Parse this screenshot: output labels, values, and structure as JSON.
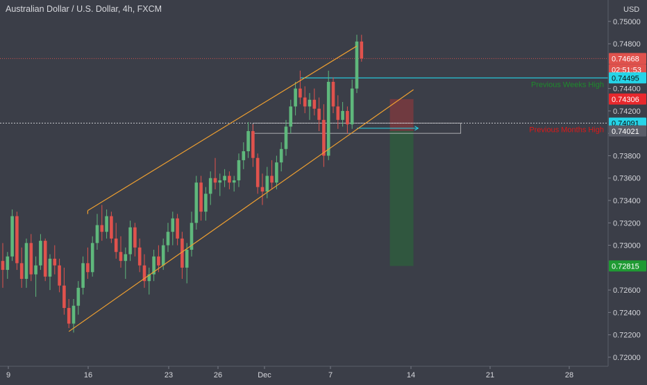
{
  "header": {
    "title": "Australian Dollar / U.S. Dollar, 4h, FXCM"
  },
  "colors": {
    "background": "#3b3e48",
    "axis_text": "#d6d7dc",
    "bull": "#5fb87c",
    "bear": "#e0524d",
    "channel": "#f0a030",
    "weeks_high": "#25d4e8",
    "months_high": "#e8e8ec",
    "label_green": "#1e8a2c",
    "label_red": "#e01818",
    "target_zone": "#2f5c3e",
    "stop_zone": "#7a3a3f"
  },
  "chart_data": {
    "type": "candlestick",
    "currency_label": "USD",
    "ylim": [
      0.7195,
      0.7516
    ],
    "y_ticks": [
      "0.75000",
      "0.74800",
      "0.74400",
      "0.74200",
      "0.74000",
      "0.73800",
      "0.73600",
      "0.73400",
      "0.73200",
      "0.73000",
      "0.72600",
      "0.72400",
      "0.72200",
      "0.72000"
    ],
    "x_ticks": [
      {
        "label": "9",
        "x": 8
      },
      {
        "label": "16",
        "x": 23
      },
      {
        "label": "23",
        "x": 38
      },
      {
        "label": "26",
        "x": 46
      },
      {
        "label": "Dec",
        "x": 53
      },
      {
        "label": "7",
        "x": 68
      },
      {
        "label": "14",
        "x": 83
      },
      {
        "label": "21",
        "x": 98
      },
      {
        "label": "28",
        "x": 113
      }
    ],
    "candles": [
      [
        0,
        0.7286,
        0.7302,
        0.7262,
        0.7278
      ],
      [
        1,
        0.7278,
        0.7294,
        0.727,
        0.729
      ],
      [
        2,
        0.729,
        0.7332,
        0.7286,
        0.7326
      ],
      [
        3,
        0.7326,
        0.733,
        0.7278,
        0.7284
      ],
      [
        4,
        0.7284,
        0.7298,
        0.7262,
        0.727
      ],
      [
        5,
        0.727,
        0.7306,
        0.7262,
        0.7302
      ],
      [
        6,
        0.7302,
        0.731,
        0.7268,
        0.7274
      ],
      [
        7,
        0.7274,
        0.729,
        0.7254,
        0.7282
      ],
      [
        8,
        0.7282,
        0.731,
        0.7278,
        0.7304
      ],
      [
        9,
        0.7304,
        0.7306,
        0.7268,
        0.7272
      ],
      [
        10,
        0.7272,
        0.7292,
        0.726,
        0.7288
      ],
      [
        11,
        0.7288,
        0.73,
        0.7274,
        0.7282
      ],
      [
        12,
        0.7282,
        0.7288,
        0.7258,
        0.7264
      ],
      [
        13,
        0.7264,
        0.728,
        0.7238,
        0.7244
      ],
      [
        14,
        0.7244,
        0.7252,
        0.7226,
        0.723
      ],
      [
        15,
        0.723,
        0.7252,
        0.7222,
        0.7246
      ],
      [
        16,
        0.7246,
        0.7268,
        0.7238,
        0.7262
      ],
      [
        17,
        0.7262,
        0.729,
        0.7256,
        0.7284
      ],
      [
        18,
        0.7284,
        0.7298,
        0.727,
        0.7276
      ],
      [
        19,
        0.7276,
        0.7308,
        0.7272,
        0.7302
      ],
      [
        20,
        0.7302,
        0.7328,
        0.7296,
        0.7318
      ],
      [
        21,
        0.7318,
        0.7336,
        0.7304,
        0.7312
      ],
      [
        22,
        0.7312,
        0.7332,
        0.7306,
        0.7326
      ],
      [
        23,
        0.7326,
        0.733,
        0.7302,
        0.7306
      ],
      [
        24,
        0.7306,
        0.732,
        0.7288,
        0.7294
      ],
      [
        25,
        0.7294,
        0.7308,
        0.728,
        0.7286
      ],
      [
        26,
        0.7286,
        0.7298,
        0.727,
        0.7292
      ],
      [
        27,
        0.7292,
        0.7322,
        0.7286,
        0.7316
      ],
      [
        28,
        0.7316,
        0.732,
        0.729,
        0.7298
      ],
      [
        29,
        0.7298,
        0.7306,
        0.7276,
        0.7282
      ],
      [
        30,
        0.7282,
        0.7292,
        0.7262,
        0.7268
      ],
      [
        31,
        0.7268,
        0.728,
        0.7256,
        0.7274
      ],
      [
        32,
        0.7274,
        0.7296,
        0.7268,
        0.729
      ],
      [
        33,
        0.729,
        0.73,
        0.7276,
        0.7282
      ],
      [
        34,
        0.7282,
        0.7306,
        0.7278,
        0.73
      ],
      [
        35,
        0.73,
        0.732,
        0.7294,
        0.7312
      ],
      [
        36,
        0.7312,
        0.733,
        0.73,
        0.7324
      ],
      [
        37,
        0.7324,
        0.7328,
        0.73,
        0.7306
      ],
      [
        38,
        0.7306,
        0.7312,
        0.727,
        0.728
      ],
      [
        39,
        0.728,
        0.7302,
        0.7266,
        0.7296
      ],
      [
        40,
        0.7296,
        0.733,
        0.729,
        0.732
      ],
      [
        41,
        0.732,
        0.7362,
        0.7314,
        0.7356
      ],
      [
        42,
        0.7356,
        0.7362,
        0.7322,
        0.733
      ],
      [
        43,
        0.733,
        0.7352,
        0.7322,
        0.7346
      ],
      [
        44,
        0.7346,
        0.7366,
        0.7336,
        0.736
      ],
      [
        45,
        0.736,
        0.7378,
        0.735,
        0.7356
      ],
      [
        46,
        0.7356,
        0.7364,
        0.7344,
        0.7358
      ],
      [
        47,
        0.7358,
        0.7368,
        0.7352,
        0.7362
      ],
      [
        48,
        0.7362,
        0.7366,
        0.735,
        0.7356
      ],
      [
        49,
        0.7356,
        0.7362,
        0.7348,
        0.7358
      ],
      [
        50,
        0.7358,
        0.7382,
        0.7352,
        0.7376
      ],
      [
        51,
        0.7376,
        0.7392,
        0.7368,
        0.7384
      ],
      [
        52,
        0.7384,
        0.741,
        0.7378,
        0.7402
      ],
      [
        53,
        0.7402,
        0.7408,
        0.737,
        0.7378
      ],
      [
        54,
        0.7378,
        0.7382,
        0.7346,
        0.7352
      ],
      [
        55,
        0.7352,
        0.7364,
        0.7336,
        0.7348
      ],
      [
        56,
        0.7348,
        0.737,
        0.7342,
        0.7362
      ],
      [
        57,
        0.7362,
        0.7376,
        0.735,
        0.7356
      ],
      [
        58,
        0.7356,
        0.738,
        0.735,
        0.7374
      ],
      [
        59,
        0.7374,
        0.7392,
        0.7366,
        0.7386
      ],
      [
        60,
        0.7386,
        0.7412,
        0.738,
        0.7406
      ],
      [
        61,
        0.7406,
        0.743,
        0.74,
        0.7424
      ],
      [
        62,
        0.7424,
        0.7446,
        0.7416,
        0.744
      ],
      [
        63,
        0.744,
        0.7456,
        0.7426,
        0.7432
      ],
      [
        64,
        0.7432,
        0.7442,
        0.7418,
        0.7424
      ],
      [
        65,
        0.7424,
        0.7436,
        0.7412,
        0.743
      ],
      [
        66,
        0.743,
        0.744,
        0.7416,
        0.7422
      ],
      [
        67,
        0.7422,
        0.7432,
        0.7402,
        0.7412
      ],
      [
        68,
        0.7412,
        0.7426,
        0.737,
        0.738
      ],
      [
        69,
        0.738,
        0.7456,
        0.7376,
        0.7446
      ],
      [
        70,
        0.7446,
        0.745,
        0.7418,
        0.7424
      ],
      [
        71,
        0.7424,
        0.7434,
        0.7404,
        0.7412
      ],
      [
        72,
        0.7412,
        0.7428,
        0.7406,
        0.742
      ],
      [
        73,
        0.742,
        0.7424,
        0.74,
        0.7408
      ],
      [
        74,
        0.7408,
        0.7448,
        0.7404,
        0.744
      ],
      [
        75,
        0.744,
        0.7488,
        0.7436,
        0.7482
      ],
      [
        76,
        0.7482,
        0.7488,
        0.7464,
        0.7467
      ]
    ]
  },
  "price_labels": [
    {
      "text": "0.74668",
      "value": 0.74668,
      "bg": "#e0524d",
      "fg": "#ffffff"
    },
    {
      "text": "02:51:53",
      "value": 0.74568,
      "bg": "#e0524d",
      "fg": "#ffffff"
    },
    {
      "text": "0.74495",
      "value": 0.74495,
      "bg": "#25d4e8",
      "fg": "#111111"
    },
    {
      "text": "0.74306",
      "value": 0.74306,
      "bg": "#e8282d",
      "fg": "#ffffff"
    },
    {
      "text": "0.74091",
      "value": 0.74091,
      "bg": "#25d4e8",
      "fg": "#111111"
    },
    {
      "text": "0.74021",
      "value": 0.74021,
      "bg": "#5a5d68",
      "fg": "#ffffff"
    },
    {
      "text": "0.72815",
      "value": 0.72815,
      "bg": "#1f9a33",
      "fg": "#ffffff"
    }
  ],
  "annotations": {
    "weeks_high_label": "Previous Weeks High",
    "months_high_label": "Previous Months High",
    "weeks_high_value": 0.74495,
    "months_high_value": 0.74091,
    "current_price": 0.74668,
    "channel": {
      "upper": [
        [
          18,
          0.7331
        ],
        [
          75,
          0.7478
        ]
      ],
      "lower": [
        [
          14,
          0.7223
        ],
        [
          87,
          0.7439
        ]
      ]
    },
    "position": {
      "x_start": 82,
      "x_end": 87,
      "entry": 0.74021,
      "stop": 0.74306,
      "target": 0.72815
    },
    "box": {
      "x_start": 53,
      "x_end": 97,
      "top": 0.74091,
      "bottom": 0.74
    }
  }
}
